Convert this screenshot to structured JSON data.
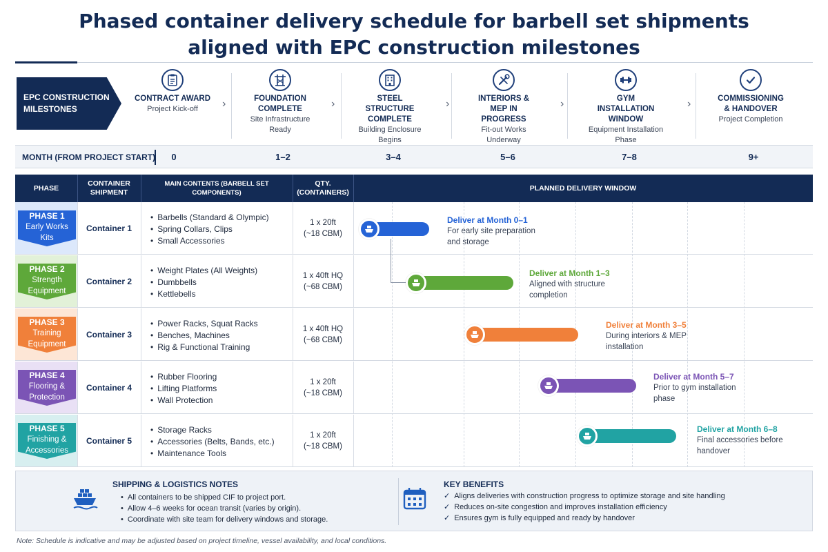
{
  "title_line1": "Phased container delivery schedule for barbell set shipments",
  "title_line2": "aligned with EPC construction milestones",
  "milestones_label": "EPC CONSTRUCTION MILESTONES",
  "milestones": [
    {
      "title": "CONTRACT AWARD",
      "sub": "Project Kick-off",
      "icon": "clipboard-icon"
    },
    {
      "title": "FOUNDATION COMPLETE",
      "sub": "Site Infrastructure Ready",
      "icon": "crane-icon"
    },
    {
      "title": "STEEL STRUCTURE COMPLETE",
      "sub": "Building Enclosure Begins",
      "icon": "building-icon"
    },
    {
      "title": "INTERIORS & MEP IN PROGRESS",
      "sub": "Fit-out Works Underway",
      "icon": "tools-icon"
    },
    {
      "title": "GYM INSTALLATION WINDOW",
      "sub": "Equipment Installation Phase",
      "icon": "dumbbell-icon"
    },
    {
      "title": "COMMISSIONING & HANDOVER",
      "sub": "Project Completion",
      "icon": "check-circle-icon"
    }
  ],
  "month_label": "MONTH (FROM PROJECT START)",
  "months": [
    "0",
    "1–2",
    "3–4",
    "5–6",
    "7–8",
    "9+"
  ],
  "table_headers": {
    "phase": "PHASE",
    "container": "CONTAINER SHIPMENT",
    "contents": "MAIN CONTENTS (BARBELL SET COMPONENTS)",
    "qty": "QTY. (CONTAINERS)",
    "window": "PLANNED DELIVERY WINDOW"
  },
  "phases": [
    {
      "phase": "PHASE 1",
      "name_line1": "Early Works",
      "name_line2": "Kits",
      "color": "#2563d6",
      "light": "#dce8fb",
      "container": "Container 1",
      "contents": [
        "Barbells (Standard & Olympic)",
        "Spring Collars, Clips",
        "Small Accessories"
      ],
      "qty": "1 x 20ft",
      "volume": "(~18 CBM)",
      "delivery_title": "Deliver at Month 0–1",
      "delivery_line1": "For early site preparation",
      "delivery_line2": "and storage"
    },
    {
      "phase": "PHASE 2",
      "name_line1": "Strength",
      "name_line2": "Equipment",
      "color": "#5ea83a",
      "light": "#e2f1d8",
      "container": "Container 2",
      "contents": [
        "Weight Plates (All Weights)",
        "Dumbbells",
        "Kettlebells"
      ],
      "qty": "1 x 40ft HQ",
      "volume": "(~68 CBM)",
      "delivery_title": "Deliver at Month 1–3",
      "delivery_line1": "Aligned with structure",
      "delivery_line2": "completion"
    },
    {
      "phase": "PHASE 3",
      "name_line1": "Training",
      "name_line2": "Equipment",
      "color": "#f0803a",
      "light": "#fde6d6",
      "container": "Container 3",
      "contents": [
        "Power Racks, Squat Racks",
        "Benches, Machines",
        "Rig & Functional Training"
      ],
      "qty": "1 x 40ft HQ",
      "volume": "(~68 CBM)",
      "delivery_title": "Deliver at Month 3–5",
      "delivery_line1": "During interiors & MEP",
      "delivery_line2": "installation"
    },
    {
      "phase": "PHASE 4",
      "name_line1": "Flooring &",
      "name_line2": "Protection",
      "color": "#7b54b5",
      "light": "#e9e0f5",
      "container": "Container 4",
      "contents": [
        "Rubber Flooring",
        "Lifting Platforms",
        "Wall Protection"
      ],
      "qty": "1 x 20ft",
      "volume": "(~18 CBM)",
      "delivery_title": "Deliver at Month 5–7",
      "delivery_line1": "Prior to gym installation",
      "delivery_line2": "phase"
    },
    {
      "phase": "PHASE 5",
      "name_line1": "Finishing &",
      "name_line2": "Accessories",
      "color": "#21a3a3",
      "light": "#d7eff0",
      "container": "Container 5",
      "contents": [
        "Storage Racks",
        "Accessories (Belts, Bands, etc.)",
        "Maintenance Tools"
      ],
      "qty": "1 x 20ft",
      "volume": "(~18 CBM)",
      "delivery_title": "Deliver at Month 6–8",
      "delivery_line1": "Final accessories before",
      "delivery_line2": "handover"
    }
  ],
  "shipping_notes": {
    "title": "SHIPPING & LOGISTICS NOTES",
    "items": [
      "All containers to be shipped CIF to project port.",
      "Allow 4–6 weeks for ocean transit (varies by origin).",
      "Coordinate with site team for delivery windows and storage."
    ]
  },
  "key_benefits": {
    "title": "KEY BENEFITS",
    "items": [
      "Aligns deliveries with construction progress to optimize storage and site handling",
      "Reduces on-site congestion and improves installation efficiency",
      "Ensures gym is fully equipped and ready by handover"
    ]
  },
  "footnote": "Note: Schedule is indicative and may be adjusted based on project timeline, vessel availability, and local conditions."
}
